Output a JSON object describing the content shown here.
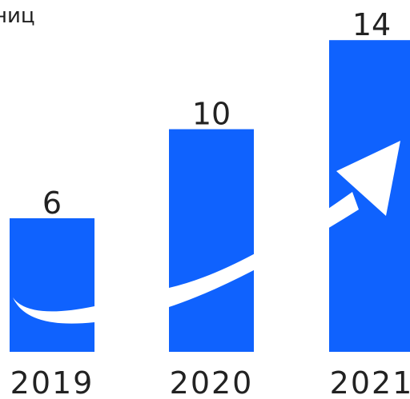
{
  "chart_data": {
    "type": "bar",
    "title": "ниц",
    "categories": [
      "2019",
      "2020",
      "2021"
    ],
    "values": [
      6,
      10,
      14
    ],
    "xlabel": "",
    "ylabel": "",
    "ylim": [
      0,
      15.3
    ],
    "grid": false,
    "legend": "none",
    "bar_color": "#0f62fe",
    "arrow_color": "#ffffff",
    "text_color": "#222222"
  }
}
